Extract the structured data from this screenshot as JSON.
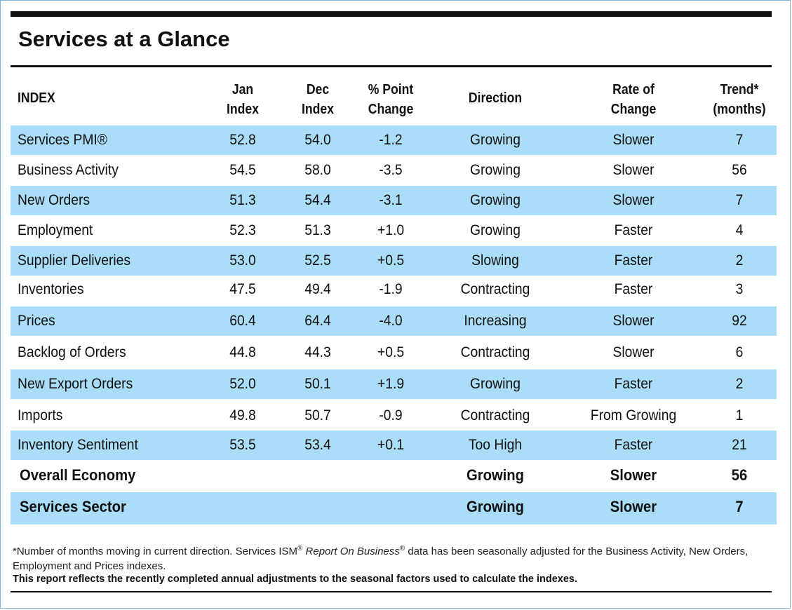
{
  "title": "Services at a Glance",
  "headers": {
    "index": "INDEX",
    "jan_1": "Jan",
    "jan_2": "Index",
    "dec_1": "Dec",
    "dec_2": "Index",
    "pct_1": "% Point",
    "pct_2": "Change",
    "direction": "Direction",
    "rate_1": "Rate of",
    "rate_2": "Change",
    "trend_1": "Trend*",
    "trend_2": "(months)"
  },
  "rows": [
    {
      "index": "Services PMI®",
      "jan": "52.8",
      "dec": "54.0",
      "change": "-1.2",
      "direction": "Growing",
      "rate": "Slower",
      "trend": "7"
    },
    {
      "index": "Business Activity",
      "jan": "54.5",
      "dec": "58.0",
      "change": "-3.5",
      "direction": "Growing",
      "rate": "Slower",
      "trend": "56"
    },
    {
      "index": "New Orders",
      "jan": "51.3",
      "dec": "54.4",
      "change": "-3.1",
      "direction": "Growing",
      "rate": "Slower",
      "trend": "7"
    },
    {
      "index": "Employment",
      "jan": "52.3",
      "dec": "51.3",
      "change": "+1.0",
      "direction": "Growing",
      "rate": "Faster",
      "trend": "4"
    },
    {
      "index": "Supplier Deliveries",
      "jan": "53.0",
      "dec": "52.5",
      "change": "+0.5",
      "direction": "Slowing",
      "rate": "Faster",
      "trend": "2"
    },
    {
      "index": "Inventories",
      "jan": "47.5",
      "dec": "49.4",
      "change": "-1.9",
      "direction": "Contracting",
      "rate": "Faster",
      "trend": "3"
    },
    {
      "index": "Prices",
      "jan": "60.4",
      "dec": "64.4",
      "change": "-4.0",
      "direction": "Increasing",
      "rate": "Slower",
      "trend": "92"
    },
    {
      "index": "Backlog of Orders",
      "jan": "44.8",
      "dec": "44.3",
      "change": "+0.5",
      "direction": "Contracting",
      "rate": "Slower",
      "trend": "6"
    },
    {
      "index": "New Export Orders",
      "jan": "52.0",
      "dec": "50.1",
      "change": "+1.9",
      "direction": "Growing",
      "rate": "Faster",
      "trend": "2"
    },
    {
      "index": "Imports",
      "jan": "49.8",
      "dec": "50.7",
      "change": "-0.9",
      "direction": "Contracting",
      "rate": "From Growing",
      "trend": "1"
    },
    {
      "index": "Inventory Sentiment",
      "jan": "53.5",
      "dec": "53.4",
      "change": "+0.1",
      "direction": "Too High",
      "rate": "Faster",
      "trend": "21"
    }
  ],
  "summary_rows": [
    {
      "index": "Overall Economy",
      "direction": "Growing",
      "rate": "Slower",
      "trend": "56"
    },
    {
      "index": "Services Sector",
      "direction": "Growing",
      "rate": "Slower",
      "trend": "7"
    }
  ],
  "footnote": {
    "part1": "*Number of months moving in current direction. Services ISM",
    "reg1": "®",
    "italic": " Report On Business",
    "reg2": "®",
    "part2": " data has been seasonally adjusted for the Business Activity, New Orders, Employment and Prices indexes."
  },
  "bold_note": "This report reflects the recently completed annual adjustments to the seasonal factors used to calculate the indexes.",
  "colors": {
    "row_blue": "#aaddf7",
    "frame": "#7fb4e0"
  }
}
